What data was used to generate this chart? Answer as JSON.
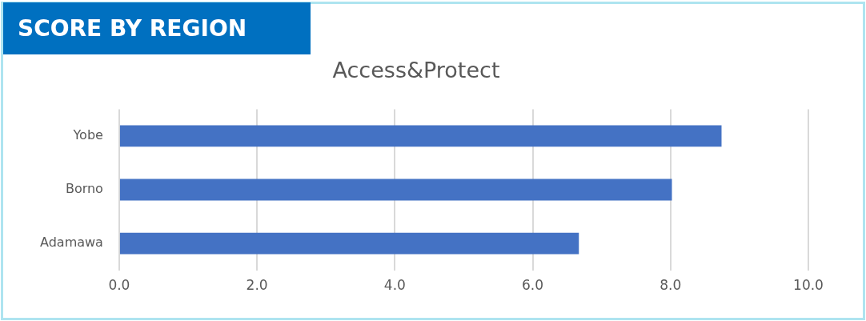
{
  "chart_data": {
    "type": "bar",
    "title": "SCORE BY REGION",
    "subtitle": "Access&Protect",
    "orientation": "horizontal",
    "categories": [
      "Yobe",
      "Borno",
      "Adamawa"
    ],
    "values": [
      8.74,
      8.02,
      6.67
    ],
    "color": "#4472c4",
    "xlim": [
      0,
      10
    ],
    "xticks": [
      {
        "value": 0,
        "label": "0.0"
      },
      {
        "value": 2,
        "label": "2.0"
      },
      {
        "value": 4,
        "label": "4.0"
      },
      {
        "value": 6,
        "label": "6.0"
      },
      {
        "value": 8,
        "label": "8.0"
      },
      {
        "value": 10,
        "label": "10.0"
      }
    ],
    "grid": "x",
    "legend": false
  }
}
